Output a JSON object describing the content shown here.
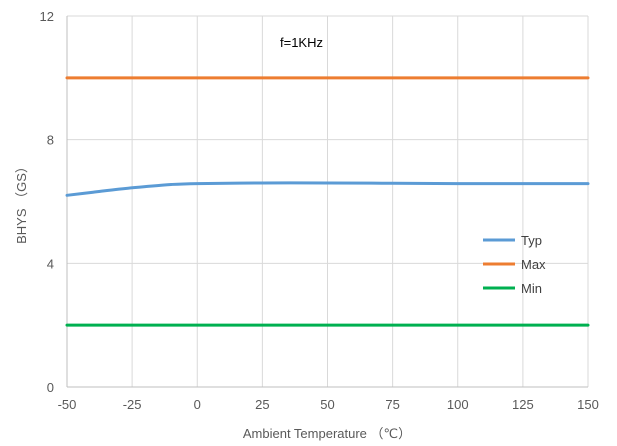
{
  "chart_data": {
    "type": "line",
    "title": "",
    "annotation": "f=1KHz",
    "xlabel": "Ambient Temperature （℃）",
    "ylabel": "BHYS （GS）",
    "xlim": [
      -50,
      150
    ],
    "ylim": [
      0,
      12
    ],
    "x_ticks": [
      -50,
      -25,
      0,
      25,
      50,
      75,
      100,
      125,
      150
    ],
    "y_ticks": [
      0,
      4,
      8,
      12
    ],
    "grid": true,
    "legend_position": "right",
    "series": [
      {
        "name": "Typ",
        "color": "#5b9bd5",
        "x": [
          -50,
          -40,
          -30,
          -20,
          -10,
          0,
          25,
          50,
          75,
          100,
          125,
          150
        ],
        "y": [
          6.2,
          6.3,
          6.4,
          6.48,
          6.55,
          6.58,
          6.6,
          6.6,
          6.59,
          6.58,
          6.58,
          6.58
        ]
      },
      {
        "name": "Max",
        "color": "#ed7d31",
        "x": [
          -50,
          150
        ],
        "y": [
          10,
          10
        ]
      },
      {
        "name": "Min",
        "color": "#00b050",
        "x": [
          -50,
          150
        ],
        "y": [
          2,
          2
        ]
      }
    ]
  }
}
